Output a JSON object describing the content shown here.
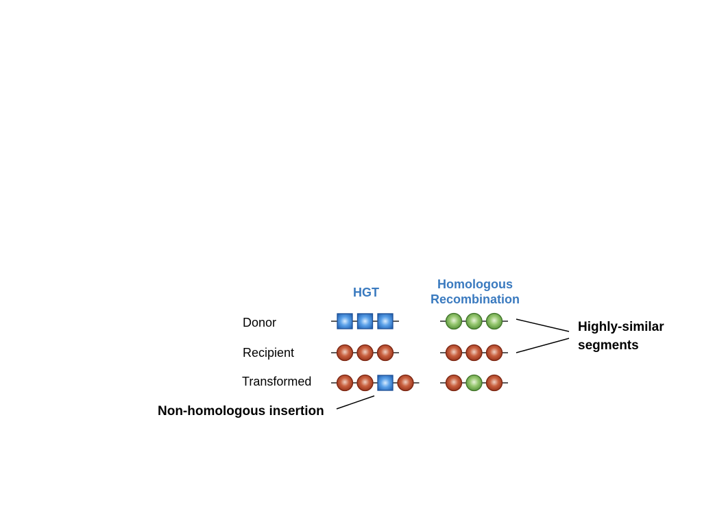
{
  "columns": {
    "hgt": "HGT",
    "homologous": "Homologous\nRecombination"
  },
  "rows": {
    "donor": "Donor",
    "recipient": "Recipient",
    "transformed": "Transformed"
  },
  "callouts": {
    "non_homologous": "Non-homologous insertion",
    "highly_similar_line1": "Highly-similar",
    "highly_similar_line2": "segments"
  },
  "sequences": {
    "hgt": {
      "donor": [
        "blue-square",
        "blue-square",
        "blue-square"
      ],
      "recipient": [
        "red-bead",
        "red-bead",
        "red-bead"
      ],
      "transformed": [
        "red-bead",
        "red-bead",
        "blue-square",
        "red-bead"
      ]
    },
    "homologous": {
      "donor": [
        "green-bead",
        "green-bead",
        "green-bead"
      ],
      "recipient": [
        "red-bead",
        "red-bead",
        "red-bead"
      ],
      "transformed": [
        "red-bead",
        "green-bead",
        "red-bead"
      ]
    }
  },
  "colors": {
    "title": "#3a7abf",
    "red": "#b8452a",
    "green": "#7cb35a",
    "blue": "#3d86d6"
  }
}
